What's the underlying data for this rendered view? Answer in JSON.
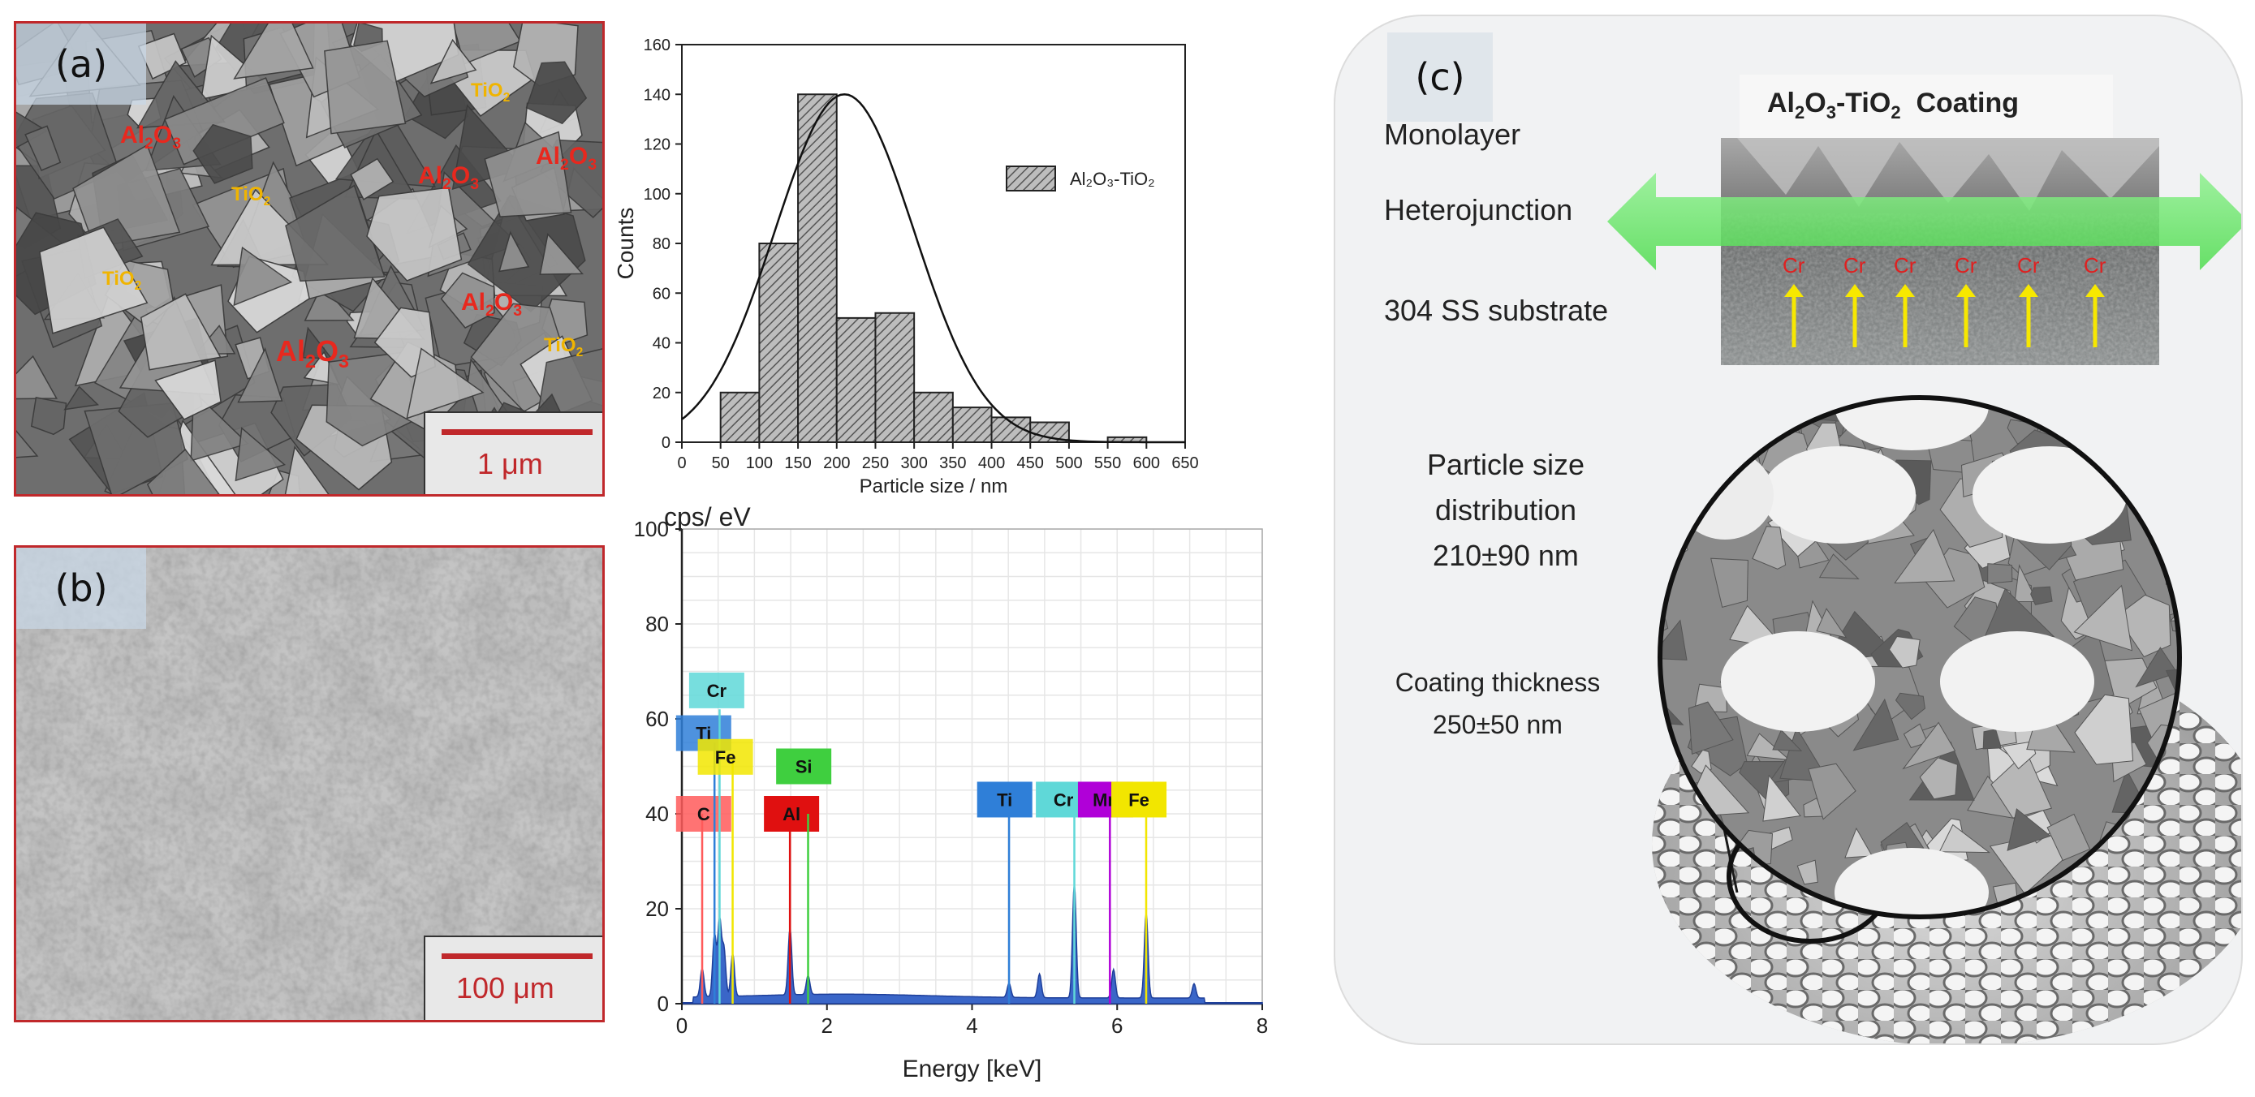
{
  "panel_a": {
    "tag": "(a)",
    "labels": [
      {
        "chem": "Al",
        "sub": "2",
        "rest": "O",
        "sub2": "3",
        "kind": "al"
      },
      {
        "chem": "Ti",
        "sub": "",
        "rest": "O",
        "sub2": "2",
        "kind": "ti"
      }
    ],
    "scale_text": "1 μm"
  },
  "panel_b": {
    "tag": "(b)",
    "scale_text": "100 μm"
  },
  "panel_c": {
    "tag": "(c)",
    "coating_title_a": "Al",
    "coating_title_s1": "2",
    "coating_title_b": "O",
    "coating_title_s2": "3",
    "coating_title_c": "-TiO",
    "coating_title_s3": "2",
    "coating_title_d": "  Coating",
    "monolayer": "Monolayer",
    "heterojunction": "Heterojunction",
    "substrate": "304 SS substrate",
    "psd_line1": "Particle size",
    "psd_line2": "distribution",
    "psd_line3": "210±90 nm",
    "thick_line1": "Coating thickness",
    "thick_line2": "250±50 nm",
    "cr_label": "Cr"
  },
  "chart_data": [
    {
      "type": "bar",
      "title": "",
      "xlabel": "Particle size / nm",
      "ylabel": "Counts",
      "xlim": [
        0,
        650
      ],
      "ylim": [
        0,
        160
      ],
      "xticks": [
        0,
        50,
        100,
        150,
        200,
        250,
        300,
        350,
        400,
        450,
        500,
        550,
        600,
        650
      ],
      "yticks": [
        0,
        20,
        40,
        60,
        80,
        100,
        120,
        140,
        160
      ],
      "bins": [
        [
          50,
          100
        ],
        [
          100,
          150
        ],
        [
          150,
          200
        ],
        [
          200,
          250
        ],
        [
          250,
          300
        ],
        [
          300,
          350
        ],
        [
          350,
          400
        ],
        [
          400,
          450
        ],
        [
          450,
          500
        ],
        [
          550,
          600
        ]
      ],
      "values": [
        20,
        80,
        140,
        50,
        52,
        20,
        14,
        10,
        8,
        2
      ],
      "legend": "Al₂O₃-TiO₂",
      "legend_position": "top-right",
      "fit_curve": {
        "type": "gaussian",
        "mean": 210,
        "sd": 90,
        "peak": 140
      }
    },
    {
      "type": "line",
      "title": "",
      "xlabel": "Energy [keV]",
      "ylabel": "cps/ eV",
      "xlim": [
        0,
        8
      ],
      "ylim": [
        0,
        100
      ],
      "xticks": [
        0,
        2,
        4,
        6,
        8
      ],
      "yticks": [
        0,
        20,
        40,
        60,
        80,
        100
      ],
      "grid": true,
      "peaks": [
        {
          "element": "C",
          "x": 0.28,
          "height": 40,
          "color": "#ff5a5a"
        },
        {
          "element": "Ti",
          "x": 0.45,
          "height": 55,
          "color": "#2f7fd8"
        },
        {
          "element": "Cr",
          "x": 0.52,
          "height": 62,
          "color": "#5fd8d8"
        },
        {
          "element": "Fe",
          "x": 0.7,
          "height": 52,
          "color": "#f2e600"
        },
        {
          "element": "Al",
          "x": 1.49,
          "height": 40,
          "color": "#e01010"
        },
        {
          "element": "Si",
          "x": 1.74,
          "height": 40,
          "color": "#3fcf3f"
        },
        {
          "element": "Ti",
          "x": 4.51,
          "height": 40,
          "color": "#2f7fd8"
        },
        {
          "element": "Cr",
          "x": 5.41,
          "height": 40,
          "color": "#5fd8d8"
        },
        {
          "element": "Mn",
          "x": 5.9,
          "height": 40,
          "color": "#b000d8"
        },
        {
          "element": "Fe",
          "x": 6.4,
          "height": 40,
          "color": "#f2e600"
        }
      ],
      "spectrum_peaks": [
        {
          "x": 0.28,
          "y": 6
        },
        {
          "x": 0.45,
          "y": 13
        },
        {
          "x": 0.52,
          "y": 16
        },
        {
          "x": 0.58,
          "y": 10
        },
        {
          "x": 0.7,
          "y": 9
        },
        {
          "x": 1.49,
          "y": 14
        },
        {
          "x": 1.74,
          "y": 4
        },
        {
          "x": 4.51,
          "y": 3
        },
        {
          "x": 4.93,
          "y": 5
        },
        {
          "x": 5.41,
          "y": 24
        },
        {
          "x": 5.95,
          "y": 6
        },
        {
          "x": 6.4,
          "y": 18
        },
        {
          "x": 7.06,
          "y": 3
        }
      ]
    }
  ]
}
